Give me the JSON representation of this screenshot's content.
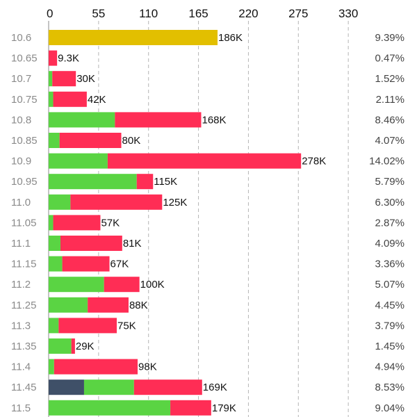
{
  "chart_data": {
    "type": "bar",
    "orientation": "horizontal",
    "stacked": true,
    "x_ticks": [
      0,
      55,
      110,
      165,
      220,
      275,
      330
    ],
    "xlim": [
      0,
      330
    ],
    "value_unit": "K",
    "grid": true,
    "rows": [
      {
        "label": "10.6",
        "total_label": "186K",
        "pct": "9.39%",
        "segments": [
          {
            "color": "#e2bf00",
            "value": 186
          }
        ]
      },
      {
        "label": "10.65",
        "total_label": "9.3K",
        "pct": "0.47%",
        "segments": [
          {
            "color": "#ff2d55",
            "value": 9.3
          }
        ]
      },
      {
        "label": "10.7",
        "total_label": "30K",
        "pct": "1.52%",
        "segments": [
          {
            "color": "#5ad443",
            "value": 4
          },
          {
            "color": "#ff2d55",
            "value": 26
          }
        ]
      },
      {
        "label": "10.75",
        "total_label": "42K",
        "pct": "2.11%",
        "segments": [
          {
            "color": "#5ad443",
            "value": 5
          },
          {
            "color": "#ff2d55",
            "value": 37
          }
        ]
      },
      {
        "label": "10.8",
        "total_label": "168K",
        "pct": "8.46%",
        "segments": [
          {
            "color": "#5ad443",
            "value": 73
          },
          {
            "color": "#ff2d55",
            "value": 95
          }
        ]
      },
      {
        "label": "10.85",
        "total_label": "80K",
        "pct": "4.07%",
        "segments": [
          {
            "color": "#5ad443",
            "value": 12
          },
          {
            "color": "#ff2d55",
            "value": 68
          }
        ]
      },
      {
        "label": "10.9",
        "total_label": "278K",
        "pct": "14.02%",
        "segments": [
          {
            "color": "#5ad443",
            "value": 65
          },
          {
            "color": "#ff2d55",
            "value": 213
          }
        ]
      },
      {
        "label": "10.95",
        "total_label": "115K",
        "pct": "5.79%",
        "segments": [
          {
            "color": "#5ad443",
            "value": 97
          },
          {
            "color": "#ff2d55",
            "value": 18
          }
        ]
      },
      {
        "label": "11.0",
        "total_label": "125K",
        "pct": "6.30%",
        "segments": [
          {
            "color": "#5ad443",
            "value": 24
          },
          {
            "color": "#ff2d55",
            "value": 101
          }
        ]
      },
      {
        "label": "11.05",
        "total_label": "57K",
        "pct": "2.87%",
        "segments": [
          {
            "color": "#5ad443",
            "value": 5
          },
          {
            "color": "#ff2d55",
            "value": 52
          }
        ]
      },
      {
        "label": "11.1",
        "total_label": "81K",
        "pct": "4.09%",
        "segments": [
          {
            "color": "#5ad443",
            "value": 13
          },
          {
            "color": "#ff2d55",
            "value": 68
          }
        ]
      },
      {
        "label": "11.15",
        "total_label": "67K",
        "pct": "3.36%",
        "segments": [
          {
            "color": "#5ad443",
            "value": 15
          },
          {
            "color": "#ff2d55",
            "value": 52
          }
        ]
      },
      {
        "label": "11.2",
        "total_label": "100K",
        "pct": "5.07%",
        "segments": [
          {
            "color": "#5ad443",
            "value": 61
          },
          {
            "color": "#ff2d55",
            "value": 39
          }
        ]
      },
      {
        "label": "11.25",
        "total_label": "88K",
        "pct": "4.45%",
        "segments": [
          {
            "color": "#5ad443",
            "value": 43
          },
          {
            "color": "#ff2d55",
            "value": 45
          }
        ]
      },
      {
        "label": "11.3",
        "total_label": "75K",
        "pct": "3.79%",
        "segments": [
          {
            "color": "#5ad443",
            "value": 11
          },
          {
            "color": "#ff2d55",
            "value": 64
          }
        ]
      },
      {
        "label": "11.35",
        "total_label": "29K",
        "pct": "1.45%",
        "segments": [
          {
            "color": "#5ad443",
            "value": 25
          },
          {
            "color": "#ff2d55",
            "value": 4
          }
        ]
      },
      {
        "label": "11.4",
        "total_label": "98K",
        "pct": "4.94%",
        "segments": [
          {
            "color": "#5ad443",
            "value": 6
          },
          {
            "color": "#ff2d55",
            "value": 92
          }
        ]
      },
      {
        "label": "11.45",
        "total_label": "169K",
        "pct": "8.53%",
        "segments": [
          {
            "color": "#3f5068",
            "value": 39
          },
          {
            "color": "#5ad443",
            "value": 55
          },
          {
            "color": "#ff2d55",
            "value": 75
          }
        ]
      },
      {
        "label": "11.5",
        "total_label": "179K",
        "pct": "9.04%",
        "segments": [
          {
            "color": "#5ad443",
            "value": 134
          },
          {
            "color": "#ff2d55",
            "value": 45
          }
        ]
      }
    ]
  }
}
